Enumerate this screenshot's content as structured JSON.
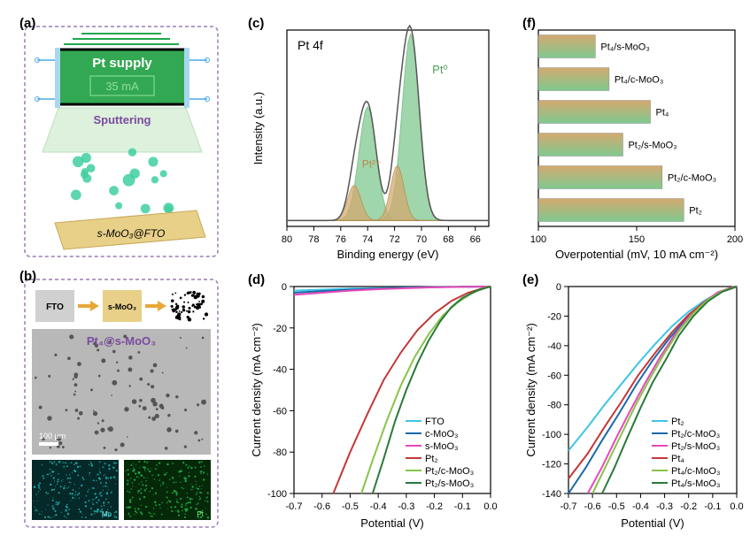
{
  "panel_a": {
    "label": "(a)",
    "supply_text": "Pt supply",
    "current_text": "35 mA",
    "sputtering_label": "Sputtering",
    "substrate_label": "s-MoO₃@FTO",
    "box_border_color": "#9b7cb6",
    "supply_box_fill": "#33a852",
    "supply_box_stroke": "#000000",
    "supply_text_color": "#ffffff",
    "current_box_stroke": "#6fd088",
    "current_text_color": "#8ee09a",
    "sputtering_color": "#7b4a9e",
    "beam_fill": "#c8e8c8",
    "beam_stroke": "#8ccf8c",
    "substrate_rect_fill": "#e8d088",
    "sputtered_atom_color": "#3fcf9f"
  },
  "panel_b": {
    "label": "(b)",
    "fto_label": "FTO",
    "smo_label": "s-MoO₃",
    "sample_label": "Pt₄@s-MoO₃",
    "scalebar_text": "100 μm",
    "mo_label": "Mo",
    "pt_label": "Pt",
    "fto_color": "#c8c8c8",
    "smo_color": "#e8d088",
    "speckle_bg": "#ffffff",
    "mo_map_color": "#1fb8b8",
    "pt_map_color": "#1fb84f",
    "arrow_color": "#e8a838",
    "label_color": "#7b4a9e"
  },
  "panel_c": {
    "label": "(c)",
    "title": "Pt 4f",
    "pt0_label": "Pt⁰",
    "pt2_label": "Pt²⁺",
    "xlabel": "Binding energy (eV)",
    "ylabel": "Intensity (a.u.)",
    "xlim": [
      80,
      65
    ],
    "xticks": [
      80,
      78,
      76,
      74,
      72,
      70,
      68,
      66
    ],
    "peak1_center": 74.0,
    "peak1_height_pt0": 0.58,
    "peak1_height_pt2": 0.18,
    "peak2_center": 70.8,
    "peak2_height_pt0": 0.95,
    "peak2_height_pt2": 0.28,
    "pt0_fill": "#7fc98f",
    "pt0_stroke": "#5ab46a",
    "pt2_fill": "#d4a96f",
    "pt2_stroke": "#b8874a",
    "envelope_color": "#555555",
    "baseline_color": "#888888",
    "pt0_label_color": "#4a9e5a",
    "pt2_label_color": "#b8874a",
    "title_fontsize": 14,
    "label_fontsize": 12
  },
  "panel_d": {
    "label": "(d)",
    "xlabel": "Potential (V)",
    "ylabel": "Current density (mA cm⁻²)",
    "xlim": [
      -0.7,
      0.0
    ],
    "ylim": [
      -100,
      0
    ],
    "xticks": [
      -0.7,
      -0.6,
      -0.5,
      -0.4,
      -0.3,
      -0.2,
      -0.1,
      0.0
    ],
    "yticks": [
      -100,
      -80,
      -60,
      -40,
      -20,
      0
    ],
    "series": [
      {
        "name": "FTO",
        "color": "#3fc4e8",
        "data": [
          [
            -0.7,
            -2
          ],
          [
            -0.6,
            -1.5
          ],
          [
            -0.5,
            -1
          ],
          [
            -0.4,
            -0.8
          ],
          [
            -0.3,
            -0.5
          ],
          [
            -0.2,
            -0.3
          ],
          [
            -0.1,
            -0.1
          ],
          [
            0,
            0
          ]
        ]
      },
      {
        "name": "c-MoO₃",
        "color": "#1a6aa8",
        "data": [
          [
            -0.7,
            -3
          ],
          [
            -0.6,
            -2.2
          ],
          [
            -0.5,
            -1.5
          ],
          [
            -0.4,
            -1
          ],
          [
            -0.3,
            -0.6
          ],
          [
            -0.2,
            -0.3
          ],
          [
            -0.1,
            -0.1
          ],
          [
            0,
            0
          ]
        ]
      },
      {
        "name": "s-MoO₃",
        "color": "#e848b8",
        "data": [
          [
            -0.7,
            -4
          ],
          [
            -0.6,
            -3
          ],
          [
            -0.5,
            -2
          ],
          [
            -0.4,
            -1.3
          ],
          [
            -0.3,
            -0.8
          ],
          [
            -0.2,
            -0.4
          ],
          [
            -0.1,
            -0.15
          ],
          [
            0,
            0
          ]
        ]
      },
      {
        "name": "Pt₂",
        "color": "#c43838",
        "data": [
          [
            -0.56,
            -100
          ],
          [
            -0.5,
            -80
          ],
          [
            -0.44,
            -62
          ],
          [
            -0.38,
            -45
          ],
          [
            -0.32,
            -32
          ],
          [
            -0.26,
            -21
          ],
          [
            -0.2,
            -13
          ],
          [
            -0.14,
            -7
          ],
          [
            -0.08,
            -3
          ],
          [
            -0.02,
            -0.5
          ],
          [
            0,
            0
          ]
        ]
      },
      {
        "name": "Pt₂/c-MoO₃",
        "color": "#88c44a",
        "data": [
          [
            -0.46,
            -100
          ],
          [
            -0.42,
            -84
          ],
          [
            -0.37,
            -65
          ],
          [
            -0.32,
            -48
          ],
          [
            -0.27,
            -34
          ],
          [
            -0.22,
            -23
          ],
          [
            -0.17,
            -14
          ],
          [
            -0.12,
            -8
          ],
          [
            -0.07,
            -3.5
          ],
          [
            -0.02,
            -0.6
          ],
          [
            0,
            0
          ]
        ]
      },
      {
        "name": "Pt₂/s-MoO₃",
        "color": "#2a7a3a",
        "data": [
          [
            -0.42,
            -100
          ],
          [
            -0.38,
            -83
          ],
          [
            -0.34,
            -65
          ],
          [
            -0.3,
            -50
          ],
          [
            -0.26,
            -37
          ],
          [
            -0.22,
            -26
          ],
          [
            -0.18,
            -17
          ],
          [
            -0.14,
            -10
          ],
          [
            -0.1,
            -5.5
          ],
          [
            -0.05,
            -2
          ],
          [
            0,
            0
          ]
        ]
      }
    ],
    "legend_pos": "bottom-right",
    "line_width": 2
  },
  "panel_e": {
    "label": "(e)",
    "xlabel": "Potential (V)",
    "ylabel": "Current density (mA cm⁻²)",
    "xlim": [
      -0.7,
      0.0
    ],
    "ylim": [
      -140,
      0
    ],
    "xticks": [
      -0.7,
      -0.6,
      -0.5,
      -0.4,
      -0.3,
      -0.2,
      -0.1,
      0.0
    ],
    "yticks": [
      -140,
      -120,
      -100,
      -80,
      -60,
      -40,
      -20,
      0
    ],
    "series": [
      {
        "name": "Pt₂",
        "color": "#3fc4e8",
        "data": [
          [
            -0.7,
            -111
          ],
          [
            -0.62,
            -95
          ],
          [
            -0.55,
            -80
          ],
          [
            -0.48,
            -66
          ],
          [
            -0.41,
            -52
          ],
          [
            -0.34,
            -39
          ],
          [
            -0.27,
            -27
          ],
          [
            -0.2,
            -17
          ],
          [
            -0.13,
            -9
          ],
          [
            -0.06,
            -3
          ],
          [
            0,
            0
          ]
        ]
      },
      {
        "name": "Pt₂/c-MoO₃",
        "color": "#1a6aa8",
        "data": [
          [
            -0.7,
            -140
          ],
          [
            -0.63,
            -123
          ],
          [
            -0.56,
            -104
          ],
          [
            -0.49,
            -86
          ],
          [
            -0.42,
            -67
          ],
          [
            -0.35,
            -50
          ],
          [
            -0.28,
            -35
          ],
          [
            -0.21,
            -22
          ],
          [
            -0.14,
            -12
          ],
          [
            -0.07,
            -4
          ],
          [
            0,
            0
          ]
        ]
      },
      {
        "name": "Pt₂/s-MoO₃",
        "color": "#e848b8",
        "data": [
          [
            -0.62,
            -140
          ],
          [
            -0.56,
            -122
          ],
          [
            -0.5,
            -102
          ],
          [
            -0.44,
            -83
          ],
          [
            -0.38,
            -65
          ],
          [
            -0.32,
            -48
          ],
          [
            -0.26,
            -33
          ],
          [
            -0.2,
            -21
          ],
          [
            -0.14,
            -11
          ],
          [
            -0.08,
            -4
          ],
          [
            -0.02,
            -0.5
          ],
          [
            0,
            0
          ]
        ]
      },
      {
        "name": "Pt₄",
        "color": "#c43838",
        "data": [
          [
            -0.7,
            -130
          ],
          [
            -0.62,
            -113
          ],
          [
            -0.55,
            -95
          ],
          [
            -0.48,
            -78
          ],
          [
            -0.41,
            -60
          ],
          [
            -0.34,
            -45
          ],
          [
            -0.27,
            -31
          ],
          [
            -0.2,
            -19
          ],
          [
            -0.13,
            -10
          ],
          [
            -0.06,
            -3.5
          ],
          [
            0,
            0
          ]
        ]
      },
      {
        "name": "Pt₄/c-MoO₃",
        "color": "#88c44a",
        "data": [
          [
            -0.6,
            -140
          ],
          [
            -0.54,
            -120
          ],
          [
            -0.48,
            -100
          ],
          [
            -0.42,
            -80
          ],
          [
            -0.36,
            -62
          ],
          [
            -0.3,
            -45
          ],
          [
            -0.24,
            -30
          ],
          [
            -0.18,
            -18
          ],
          [
            -0.12,
            -9
          ],
          [
            -0.06,
            -3
          ],
          [
            0,
            0
          ]
        ]
      },
      {
        "name": "Pt₄/s-MoO₃",
        "color": "#2a7a3a",
        "data": [
          [
            -0.56,
            -140
          ],
          [
            -0.51,
            -123
          ],
          [
            -0.46,
            -104
          ],
          [
            -0.4,
            -82
          ],
          [
            -0.35,
            -65
          ],
          [
            -0.29,
            -48
          ],
          [
            -0.24,
            -33
          ],
          [
            -0.18,
            -20
          ],
          [
            -0.12,
            -10
          ],
          [
            -0.06,
            -3.5
          ],
          [
            0,
            0
          ]
        ]
      }
    ],
    "legend_pos": "bottom-right",
    "line_width": 2
  },
  "panel_f": {
    "label": "(f)",
    "xlabel": "Overpotential (mV, 10 mA cm⁻²)",
    "xlim": [
      100,
      200
    ],
    "xticks": [
      100,
      150,
      200
    ],
    "bars": [
      {
        "label": "Pt₄/s-MoO₃",
        "value": 129
      },
      {
        "label": "Pt₄/c-MoO₃",
        "value": 136
      },
      {
        "label": "Pt₄",
        "value": 157
      },
      {
        "label": "Pt₂/s-MoO₃",
        "value": 143
      },
      {
        "label": "Pt₂/c-MoO₃",
        "value": 163
      },
      {
        "label": "Pt₂",
        "value": 174
      }
    ],
    "bar_fill_top": "#d4a96f",
    "bar_fill_bottom": "#7fc98f",
    "bar_width": 0.7,
    "label_fontsize": 11
  }
}
